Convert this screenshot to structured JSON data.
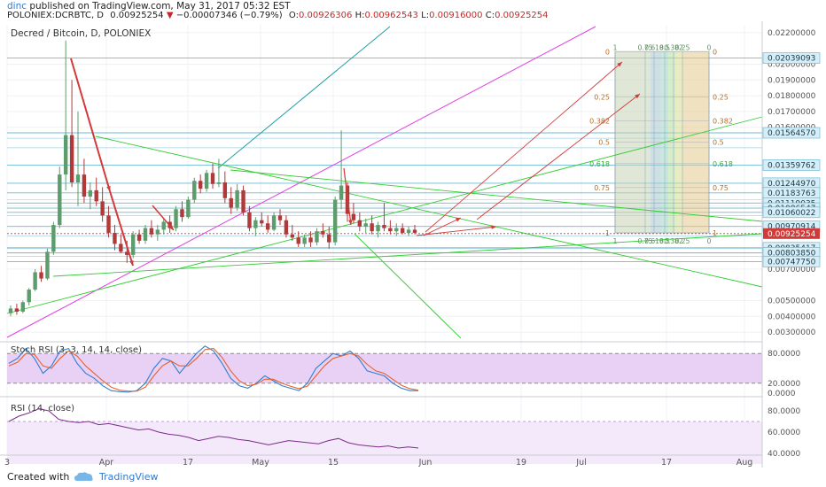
{
  "header": {
    "user": "dinc",
    "published_text": "published on TradingView.com, May 31, 2017 05:32 EST",
    "symbol": "POLONIEX:DCRBTC, D",
    "price": "0.00925254",
    "change": "−0.00007346 (−0.79%)",
    "o_label": "O:",
    "o_value": "0.00926306",
    "h_label": "H:",
    "h_value": "0.00962543",
    "l_label": "L:",
    "l_value": "0.00916000",
    "c_label": "C:",
    "c_value": "0.00925254"
  },
  "footer": {
    "created_with": "Created with",
    "brand": "TradingView"
  },
  "colors": {
    "up": "#5d9c6d",
    "down": "#b03a3a",
    "fib_h": "#4aa8c8",
    "green_line": "#33cc33",
    "magenta_line": "#e040e0",
    "teal_line": "#1f9f9f",
    "red_arrow": "#d23a3a",
    "stoch_k": "#2f7fd1",
    "stoch_d": "#e8602c",
    "rsi": "#7b2c8a"
  },
  "chart_data": {
    "type": "candlestick",
    "title": "Decred / Bitcoin, D, POLONIEX",
    "x_ticks": [
      "3",
      "Apr",
      "17",
      "May",
      "15",
      "Jun",
      "19",
      "Jul",
      "17",
      "Aug"
    ],
    "price_ticks": [
      "0.02200000",
      "0.02000000",
      "0.01900000",
      "0.01800000",
      "0.01700000",
      "0.01600000",
      "0.01100000",
      "0.00800000",
      "0.00700000",
      "0.00500000",
      "0.00400000",
      "0.00300000"
    ],
    "price_ylim": [
      0.0025,
      0.0225
    ],
    "level_labels": [
      "0.02039093",
      "0.01564570",
      "0.01359762",
      "0.01244970",
      "0.01183763",
      "0.01119035",
      "0.01086547",
      "0.01060022",
      "0.00970914",
      "0.00835417",
      "0.00803850",
      "0.00747750"
    ],
    "current_price": "0.00925254",
    "candles": [
      [
        0.0042,
        0.0047,
        0.004,
        0.0045
      ],
      [
        0.0045,
        0.0048,
        0.0041,
        0.0043
      ],
      [
        0.0043,
        0.005,
        0.0042,
        0.0049
      ],
      [
        0.0049,
        0.0058,
        0.0047,
        0.0057
      ],
      [
        0.0057,
        0.007,
        0.0056,
        0.0068
      ],
      [
        0.0068,
        0.0072,
        0.0062,
        0.0064
      ],
      [
        0.0064,
        0.0083,
        0.0063,
        0.0081
      ],
      [
        0.0081,
        0.01,
        0.0079,
        0.0098
      ],
      [
        0.0098,
        0.0135,
        0.0096,
        0.013
      ],
      [
        0.013,
        0.0215,
        0.012,
        0.0155
      ],
      [
        0.0155,
        0.019,
        0.0122,
        0.0125
      ],
      [
        0.0125,
        0.017,
        0.011,
        0.013
      ],
      [
        0.013,
        0.014,
        0.0112,
        0.0116
      ],
      [
        0.0116,
        0.0125,
        0.0108,
        0.012
      ],
      [
        0.012,
        0.0128,
        0.011,
        0.0113
      ],
      [
        0.0113,
        0.0122,
        0.01,
        0.0104
      ],
      [
        0.0104,
        0.011,
        0.009,
        0.0093
      ],
      [
        0.0093,
        0.0098,
        0.0082,
        0.0086
      ],
      [
        0.0086,
        0.0092,
        0.008,
        0.0081
      ],
      [
        0.0081,
        0.0088,
        0.0074,
        0.0079
      ],
      [
        0.0079,
        0.0094,
        0.0077,
        0.0092
      ],
      [
        0.0092,
        0.0095,
        0.0086,
        0.0088
      ],
      [
        0.0088,
        0.0098,
        0.0086,
        0.0096
      ],
      [
        0.0096,
        0.0101,
        0.009,
        0.0092
      ],
      [
        0.0092,
        0.0098,
        0.0088,
        0.0095
      ],
      [
        0.0095,
        0.0102,
        0.0092,
        0.01
      ],
      [
        0.01,
        0.0104,
        0.0093,
        0.0096
      ],
      [
        0.0096,
        0.011,
        0.0094,
        0.0108
      ],
      [
        0.0108,
        0.0113,
        0.01,
        0.0103
      ],
      [
        0.0103,
        0.0116,
        0.0102,
        0.0114
      ],
      [
        0.0114,
        0.0128,
        0.0112,
        0.0126
      ],
      [
        0.0126,
        0.013,
        0.0118,
        0.0121
      ],
      [
        0.0121,
        0.0133,
        0.0119,
        0.0131
      ],
      [
        0.0131,
        0.0137,
        0.0121,
        0.0124
      ],
      [
        0.0124,
        0.014,
        0.0122,
        0.0125
      ],
      [
        0.0125,
        0.0132,
        0.0112,
        0.0115
      ],
      [
        0.0115,
        0.0122,
        0.0105,
        0.0109
      ],
      [
        0.0109,
        0.0124,
        0.0107,
        0.012
      ],
      [
        0.012,
        0.0123,
        0.0104,
        0.0106
      ],
      [
        0.0106,
        0.011,
        0.0094,
        0.0096
      ],
      [
        0.0096,
        0.0103,
        0.0091,
        0.0101
      ],
      [
        0.0101,
        0.0106,
        0.0097,
        0.0099
      ],
      [
        0.0099,
        0.0104,
        0.0093,
        0.0095
      ],
      [
        0.0095,
        0.0106,
        0.0094,
        0.0104
      ],
      [
        0.0104,
        0.0108,
        0.0098,
        0.0101
      ],
      [
        0.0101,
        0.0104,
        0.009,
        0.0092
      ],
      [
        0.0092,
        0.0098,
        0.0088,
        0.009
      ],
      [
        0.009,
        0.0094,
        0.0084,
        0.0086
      ],
      [
        0.0086,
        0.0092,
        0.0084,
        0.009
      ],
      [
        0.009,
        0.0094,
        0.0084,
        0.0087
      ],
      [
        0.0087,
        0.0096,
        0.0085,
        0.0094
      ],
      [
        0.0094,
        0.0099,
        0.009,
        0.0092
      ],
      [
        0.0092,
        0.0097,
        0.0083,
        0.0087
      ],
      [
        0.0087,
        0.0116,
        0.0085,
        0.0114
      ],
      [
        0.0114,
        0.0158,
        0.0108,
        0.0123
      ],
      [
        0.0123,
        0.0125,
        0.01,
        0.0105
      ],
      [
        0.0105,
        0.0112,
        0.0099,
        0.0101
      ],
      [
        0.0101,
        0.0106,
        0.0094,
        0.0097
      ],
      [
        0.0097,
        0.0102,
        0.0093,
        0.0099
      ],
      [
        0.0099,
        0.0104,
        0.0092,
        0.0094
      ],
      [
        0.0094,
        0.01,
        0.009,
        0.0098
      ],
      [
        0.0098,
        0.0112,
        0.0094,
        0.0096
      ],
      [
        0.0096,
        0.0101,
        0.0092,
        0.0094
      ],
      [
        0.0094,
        0.0099,
        0.0091,
        0.0096
      ],
      [
        0.0096,
        0.0099,
        0.0092,
        0.0093
      ],
      [
        0.0093,
        0.0097,
        0.0091,
        0.0095
      ],
      [
        0.0095,
        0.0098,
        0.0092,
        0.0093
      ]
    ],
    "fib_extension_levels": [
      "0",
      "0.25",
      "0.382",
      "0.5",
      "0.618",
      "0.75",
      "1"
    ],
    "fib_fan_labels": [
      "1",
      "0.75",
      "0.618",
      "0.5",
      "0.382",
      "0.25",
      "0"
    ],
    "stoch_rsi": {
      "title": "Stoch RSI (3, 3, 14, 14, close)",
      "ticks": [
        "80.0000",
        "20.0000",
        "0.0000"
      ],
      "k": [
        60,
        70,
        90,
        70,
        40,
        55,
        85,
        90,
        60,
        40,
        30,
        15,
        5,
        3,
        2,
        5,
        20,
        50,
        70,
        65,
        40,
        60,
        80,
        95,
        85,
        60,
        30,
        15,
        10,
        20,
        35,
        25,
        15,
        10,
        5,
        20,
        50,
        65,
        80,
        75,
        85,
        70,
        45,
        40,
        35,
        20,
        10,
        5,
        5
      ],
      "d": [
        55,
        62,
        80,
        78,
        55,
        50,
        70,
        85,
        75,
        55,
        40,
        25,
        12,
        6,
        4,
        4,
        12,
        35,
        55,
        65,
        55,
        55,
        70,
        88,
        90,
        72,
        45,
        25,
        15,
        18,
        28,
        28,
        20,
        14,
        9,
        14,
        35,
        55,
        70,
        75,
        80,
        75,
        58,
        45,
        40,
        28,
        16,
        9,
        6
      ]
    },
    "rsi": {
      "title": "RSI (14, close)",
      "ticks": [
        "80.0000",
        "60.0000",
        "40.0000"
      ],
      "values": [
        70,
        75,
        78,
        82,
        80,
        72,
        70,
        69,
        70,
        67,
        68,
        66,
        64,
        62,
        63,
        60,
        58,
        57,
        55,
        52,
        54,
        56,
        55,
        53,
        52,
        50,
        48,
        50,
        52,
        51,
        50,
        49,
        52,
        54,
        50,
        48,
        47,
        46,
        47,
        45,
        46,
        45
      ]
    }
  }
}
